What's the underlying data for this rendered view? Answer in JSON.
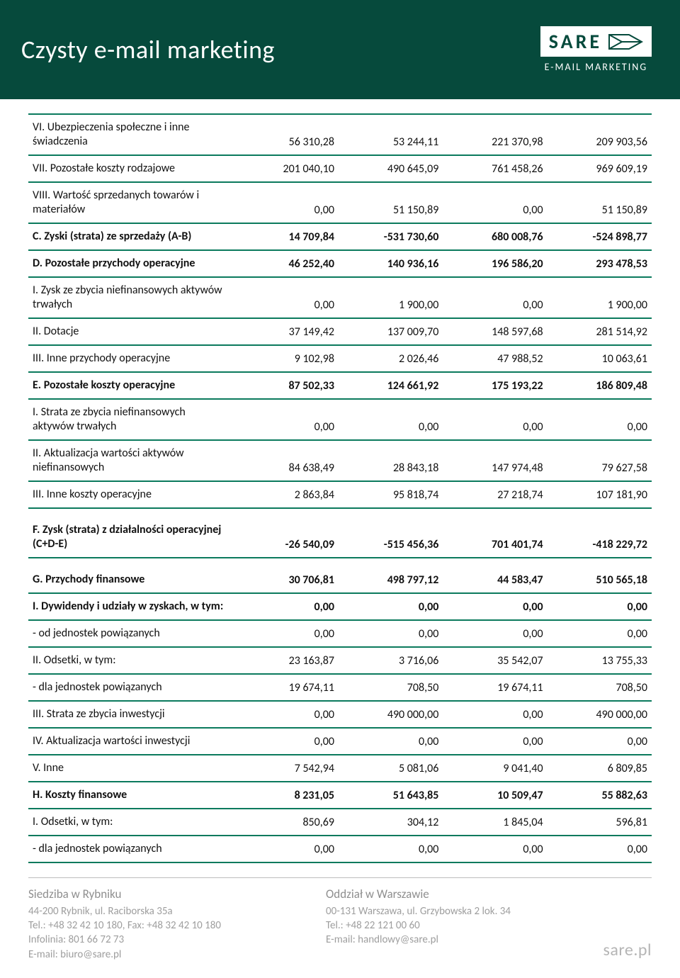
{
  "header": {
    "title": "Czysty e-mail marketing",
    "logo_text": "SARE",
    "logo_sub": "E-MAIL MARKETING"
  },
  "table": {
    "border_color": "#0b7a5d",
    "columns": 4,
    "rows": [
      {
        "label": "VI. Ubezpieczenia społeczne i inne świadczenia",
        "values": [
          "56 310,28",
          "53 244,11",
          "221 370,98",
          "209 903,56"
        ],
        "bold": false
      },
      {
        "label": "VII. Pozostałe koszty rodzajowe",
        "values": [
          "201 040,10",
          "490 645,09",
          "761 458,26",
          "969 609,19"
        ],
        "bold": false
      },
      {
        "label": "VIII. Wartość sprzedanych towarów i materiałów",
        "values": [
          "0,00",
          "51 150,89",
          "0,00",
          "51 150,89"
        ],
        "bold": false
      },
      {
        "label": "C. Zyski (strata) ze sprzedaży (A-B)",
        "values": [
          "14 709,84",
          "-531 730,60",
          "680 008,76",
          "-524 898,77"
        ],
        "bold": true
      },
      {
        "label": "D. Pozostałe przychody operacyjne",
        "values": [
          "46 252,40",
          "140 936,16",
          "196 586,20",
          "293 478,53"
        ],
        "bold": true
      },
      {
        "label": "I. Zysk ze zbycia niefinansowych aktywów trwałych",
        "values": [
          "0,00",
          "1 900,00",
          "0,00",
          "1 900,00"
        ],
        "bold": false
      },
      {
        "label": "II. Dotacje",
        "values": [
          "37 149,42",
          "137 009,70",
          "148 597,68",
          "281 514,92"
        ],
        "bold": false
      },
      {
        "label": "III. Inne przychody operacyjne",
        "values": [
          "9 102,98",
          "2 026,46",
          "47 988,52",
          "10 063,61"
        ],
        "bold": false
      },
      {
        "label": "E. Pozostałe koszty operacyjne",
        "values": [
          "87 502,33",
          "124 661,92",
          "175 193,22",
          "186 809,48"
        ],
        "bold": true
      },
      {
        "label": "I. Strata ze zbycia niefinansowych aktywów trwałych",
        "values": [
          "0,00",
          "0,00",
          "0,00",
          "0,00"
        ],
        "bold": false
      },
      {
        "label": "II. Aktualizacja wartości aktywów niefinansowych",
        "values": [
          "84 638,49",
          "28 843,18",
          "147 974,48",
          "79 627,58"
        ],
        "bold": false
      },
      {
        "label": "III. Inne koszty operacyjne",
        "values": [
          "2 863,84",
          "95 818,74",
          "27 218,74",
          "107 181,90"
        ],
        "bold": false
      },
      {
        "label": "F. Zysk (strata) z działalności operacyjnej (C+D-E)",
        "values": [
          "-26 540,09",
          "-515 456,36",
          "701 401,74",
          "-418 229,72"
        ],
        "bold": true,
        "spacer": true
      },
      {
        "label": "G. Przychody finansowe",
        "values": [
          "30 706,81",
          "498 797,12",
          "44 583,47",
          "510 565,18"
        ],
        "bold": true,
        "spacer": true
      },
      {
        "label": "I. Dywidendy i udziały w zyskach, w tym:",
        "values": [
          "0,00",
          "0,00",
          "0,00",
          "0,00"
        ],
        "bold": true
      },
      {
        "label": "- od jednostek powiązanych",
        "values": [
          "0,00",
          "0,00",
          "0,00",
          "0,00"
        ],
        "bold": false
      },
      {
        "label": "II. Odsetki, w tym:",
        "values": [
          "23 163,87",
          "3 716,06",
          "35 542,07",
          "13 755,33"
        ],
        "bold": false
      },
      {
        "label": "- dla jednostek powiązanych",
        "values": [
          "19 674,11",
          "708,50",
          "19 674,11",
          "708,50"
        ],
        "bold": false
      },
      {
        "label": "III. Strata ze zbycia inwestycji",
        "values": [
          "0,00",
          "490 000,00",
          "0,00",
          "490 000,00"
        ],
        "bold": false
      },
      {
        "label": "IV. Aktualizacja wartości inwestycji",
        "values": [
          "0,00",
          "0,00",
          "0,00",
          "0,00"
        ],
        "bold": false
      },
      {
        "label": "V. Inne",
        "values": [
          "7 542,94",
          "5 081,06",
          "9 041,40",
          "6 809,85"
        ],
        "bold": false
      },
      {
        "label": "H. Koszty finansowe",
        "values": [
          "8 231,05",
          "51 643,85",
          "10 509,47",
          "55 882,63"
        ],
        "bold": true
      },
      {
        "label": "I. Odsetki, w tym:",
        "values": [
          "850,69",
          "304,12",
          "1 845,04",
          "596,81"
        ],
        "bold": false
      },
      {
        "label": "- dla jednostek powiązanych",
        "values": [
          "0,00",
          "0,00",
          "0,00",
          "0,00"
        ],
        "bold": false
      }
    ]
  },
  "footer": {
    "left": {
      "title": "Siedziba w Rybniku",
      "lines": [
        "44-200 Rybnik, ul. Raciborska 35a",
        "Tel.: +48 32 42 10 180, Fax: +48 32 42 10 180",
        "Infolinia: 801 66 72 73",
        "E-mail: biuro@sare.pl"
      ]
    },
    "right": {
      "title": "Oddział w Warszawie",
      "lines": [
        "00-131 Warszawa, ul. Grzybowska 2 lok. 34",
        "Tel.: +48 22 121 00 60",
        "E-mail: handlowy@sare.pl"
      ]
    },
    "site": "sare.pl"
  }
}
